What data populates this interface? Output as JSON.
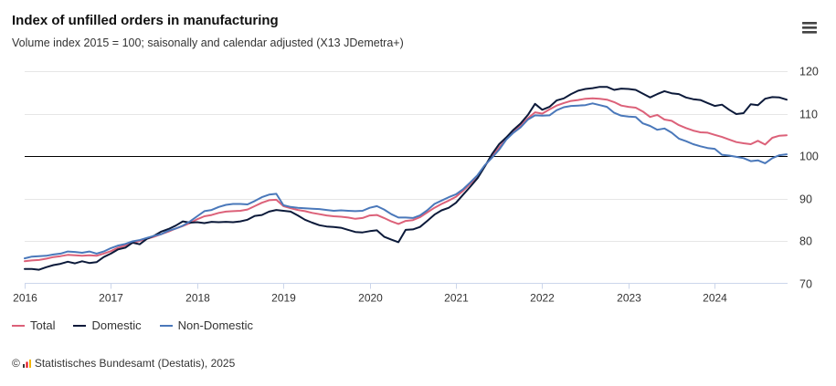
{
  "chart_data": {
    "type": "line",
    "title": "Index of unfilled orders in manufacturing",
    "subtitle": "Volume index 2015 = 100; saisonally and calendar adjusted (X13 JDemetra+)",
    "start_year": 2016,
    "start_month": 1,
    "x_ticks": [
      "2016",
      "2017",
      "2018",
      "2019",
      "2020",
      "2021",
      "2022",
      "2023",
      "2024"
    ],
    "y_ticks": [
      70,
      80,
      90,
      100,
      110,
      120
    ],
    "ylim": [
      70,
      120
    ],
    "grid": true,
    "reference_line": 100,
    "series": [
      {
        "name": "Total",
        "color": "#dc6179",
        "values": [
          75.2,
          75.4,
          75.5,
          75.8,
          76.2,
          76.4,
          76.7,
          76.6,
          76.5,
          76.6,
          76.5,
          77.0,
          77.6,
          78.4,
          78.9,
          79.5,
          80.0,
          80.5,
          81.0,
          81.6,
          82.2,
          82.9,
          83.5,
          84.2,
          85.1,
          85.8,
          86.1,
          86.6,
          86.9,
          87.0,
          87.1,
          87.4,
          88.2,
          89.0,
          89.6,
          89.7,
          88.2,
          87.7,
          87.3,
          87.0,
          86.6,
          86.3,
          86.0,
          85.8,
          85.7,
          85.5,
          85.2,
          85.4,
          86.0,
          86.1,
          85.4,
          84.6,
          84.0,
          84.7,
          84.9,
          85.6,
          86.7,
          87.8,
          88.7,
          89.5,
          90.4,
          91.8,
          93.5,
          95.3,
          97.6,
          99.9,
          102.0,
          104.0,
          105.8,
          107.2,
          108.9,
          110.3,
          110.0,
          111.0,
          111.9,
          112.5,
          113.0,
          113.2,
          113.5,
          113.6,
          113.5,
          113.3,
          112.7,
          111.9,
          111.6,
          111.4,
          110.5,
          109.2,
          109.7,
          108.6,
          108.3,
          107.3,
          106.6,
          106.0,
          105.6,
          105.5,
          105.0,
          104.5,
          103.9,
          103.3,
          103.0,
          102.8,
          103.6,
          102.7,
          104.3,
          104.8,
          104.9
        ]
      },
      {
        "name": "Domestic",
        "color": "#0c1a3a",
        "values": [
          73.4,
          73.4,
          73.2,
          73.8,
          74.3,
          74.6,
          75.1,
          74.7,
          75.2,
          74.8,
          75.0,
          76.2,
          77.0,
          78.0,
          78.4,
          79.6,
          79.2,
          80.5,
          81.2,
          82.2,
          82.8,
          83.6,
          84.6,
          84.3,
          84.4,
          84.2,
          84.5,
          84.4,
          84.5,
          84.4,
          84.6,
          85.0,
          85.9,
          86.1,
          86.9,
          87.3,
          87.1,
          86.9,
          86.0,
          85.0,
          84.3,
          83.7,
          83.4,
          83.3,
          83.1,
          82.6,
          82.1,
          82.0,
          82.3,
          82.5,
          81.0,
          80.3,
          79.7,
          82.6,
          82.7,
          83.3,
          84.7,
          86.2,
          87.2,
          87.8,
          89.0,
          90.9,
          92.8,
          94.8,
          97.5,
          100.4,
          102.8,
          104.4,
          106.2,
          107.7,
          109.7,
          112.3,
          110.9,
          111.6,
          113.1,
          113.6,
          114.6,
          115.4,
          115.8,
          116.0,
          116.3,
          116.3,
          115.6,
          115.9,
          115.8,
          115.6,
          114.7,
          113.8,
          114.6,
          115.3,
          114.8,
          114.6,
          113.8,
          113.4,
          113.2,
          112.5,
          111.8,
          112.1,
          110.9,
          109.9,
          110.1,
          112.2,
          112.0,
          113.5,
          113.9,
          113.8,
          113.3
        ]
      },
      {
        "name": "Non-Domestic",
        "color": "#4a78ba",
        "values": [
          75.9,
          76.3,
          76.4,
          76.5,
          76.8,
          77.0,
          77.5,
          77.4,
          77.2,
          77.5,
          77.0,
          77.5,
          78.3,
          78.9,
          79.3,
          79.9,
          80.2,
          80.7,
          81.2,
          81.6,
          82.4,
          82.9,
          83.6,
          84.6,
          85.8,
          87.0,
          87.3,
          88.0,
          88.5,
          88.7,
          88.7,
          88.6,
          89.4,
          90.3,
          90.9,
          91.1,
          88.4,
          88.0,
          87.8,
          87.7,
          87.6,
          87.5,
          87.3,
          87.1,
          87.2,
          87.1,
          87.0,
          87.1,
          87.8,
          88.2,
          87.4,
          86.3,
          85.5,
          85.5,
          85.4,
          86.0,
          87.2,
          88.7,
          89.5,
          90.3,
          91.0,
          92.2,
          93.8,
          95.5,
          97.8,
          99.6,
          101.5,
          103.9,
          105.5,
          106.8,
          108.6,
          109.6,
          109.5,
          109.6,
          110.8,
          111.5,
          111.8,
          111.9,
          112.0,
          112.4,
          112.0,
          111.6,
          110.2,
          109.5,
          109.3,
          109.2,
          107.7,
          107.1,
          106.2,
          106.5,
          105.5,
          104.1,
          103.5,
          102.8,
          102.3,
          101.9,
          101.7,
          100.3,
          100.1,
          99.8,
          99.5,
          98.8,
          99.0,
          98.3,
          99.5,
          100.2,
          100.4
        ]
      }
    ]
  },
  "toolbar": {
    "menu_icon": "menu-icon",
    "icon_color": "#444444"
  },
  "footer": {
    "copyright_symbol": "©",
    "logo_icon": "destatis-logo-icon",
    "source": "Statistisches Bundesamt (Destatis), 2025"
  }
}
